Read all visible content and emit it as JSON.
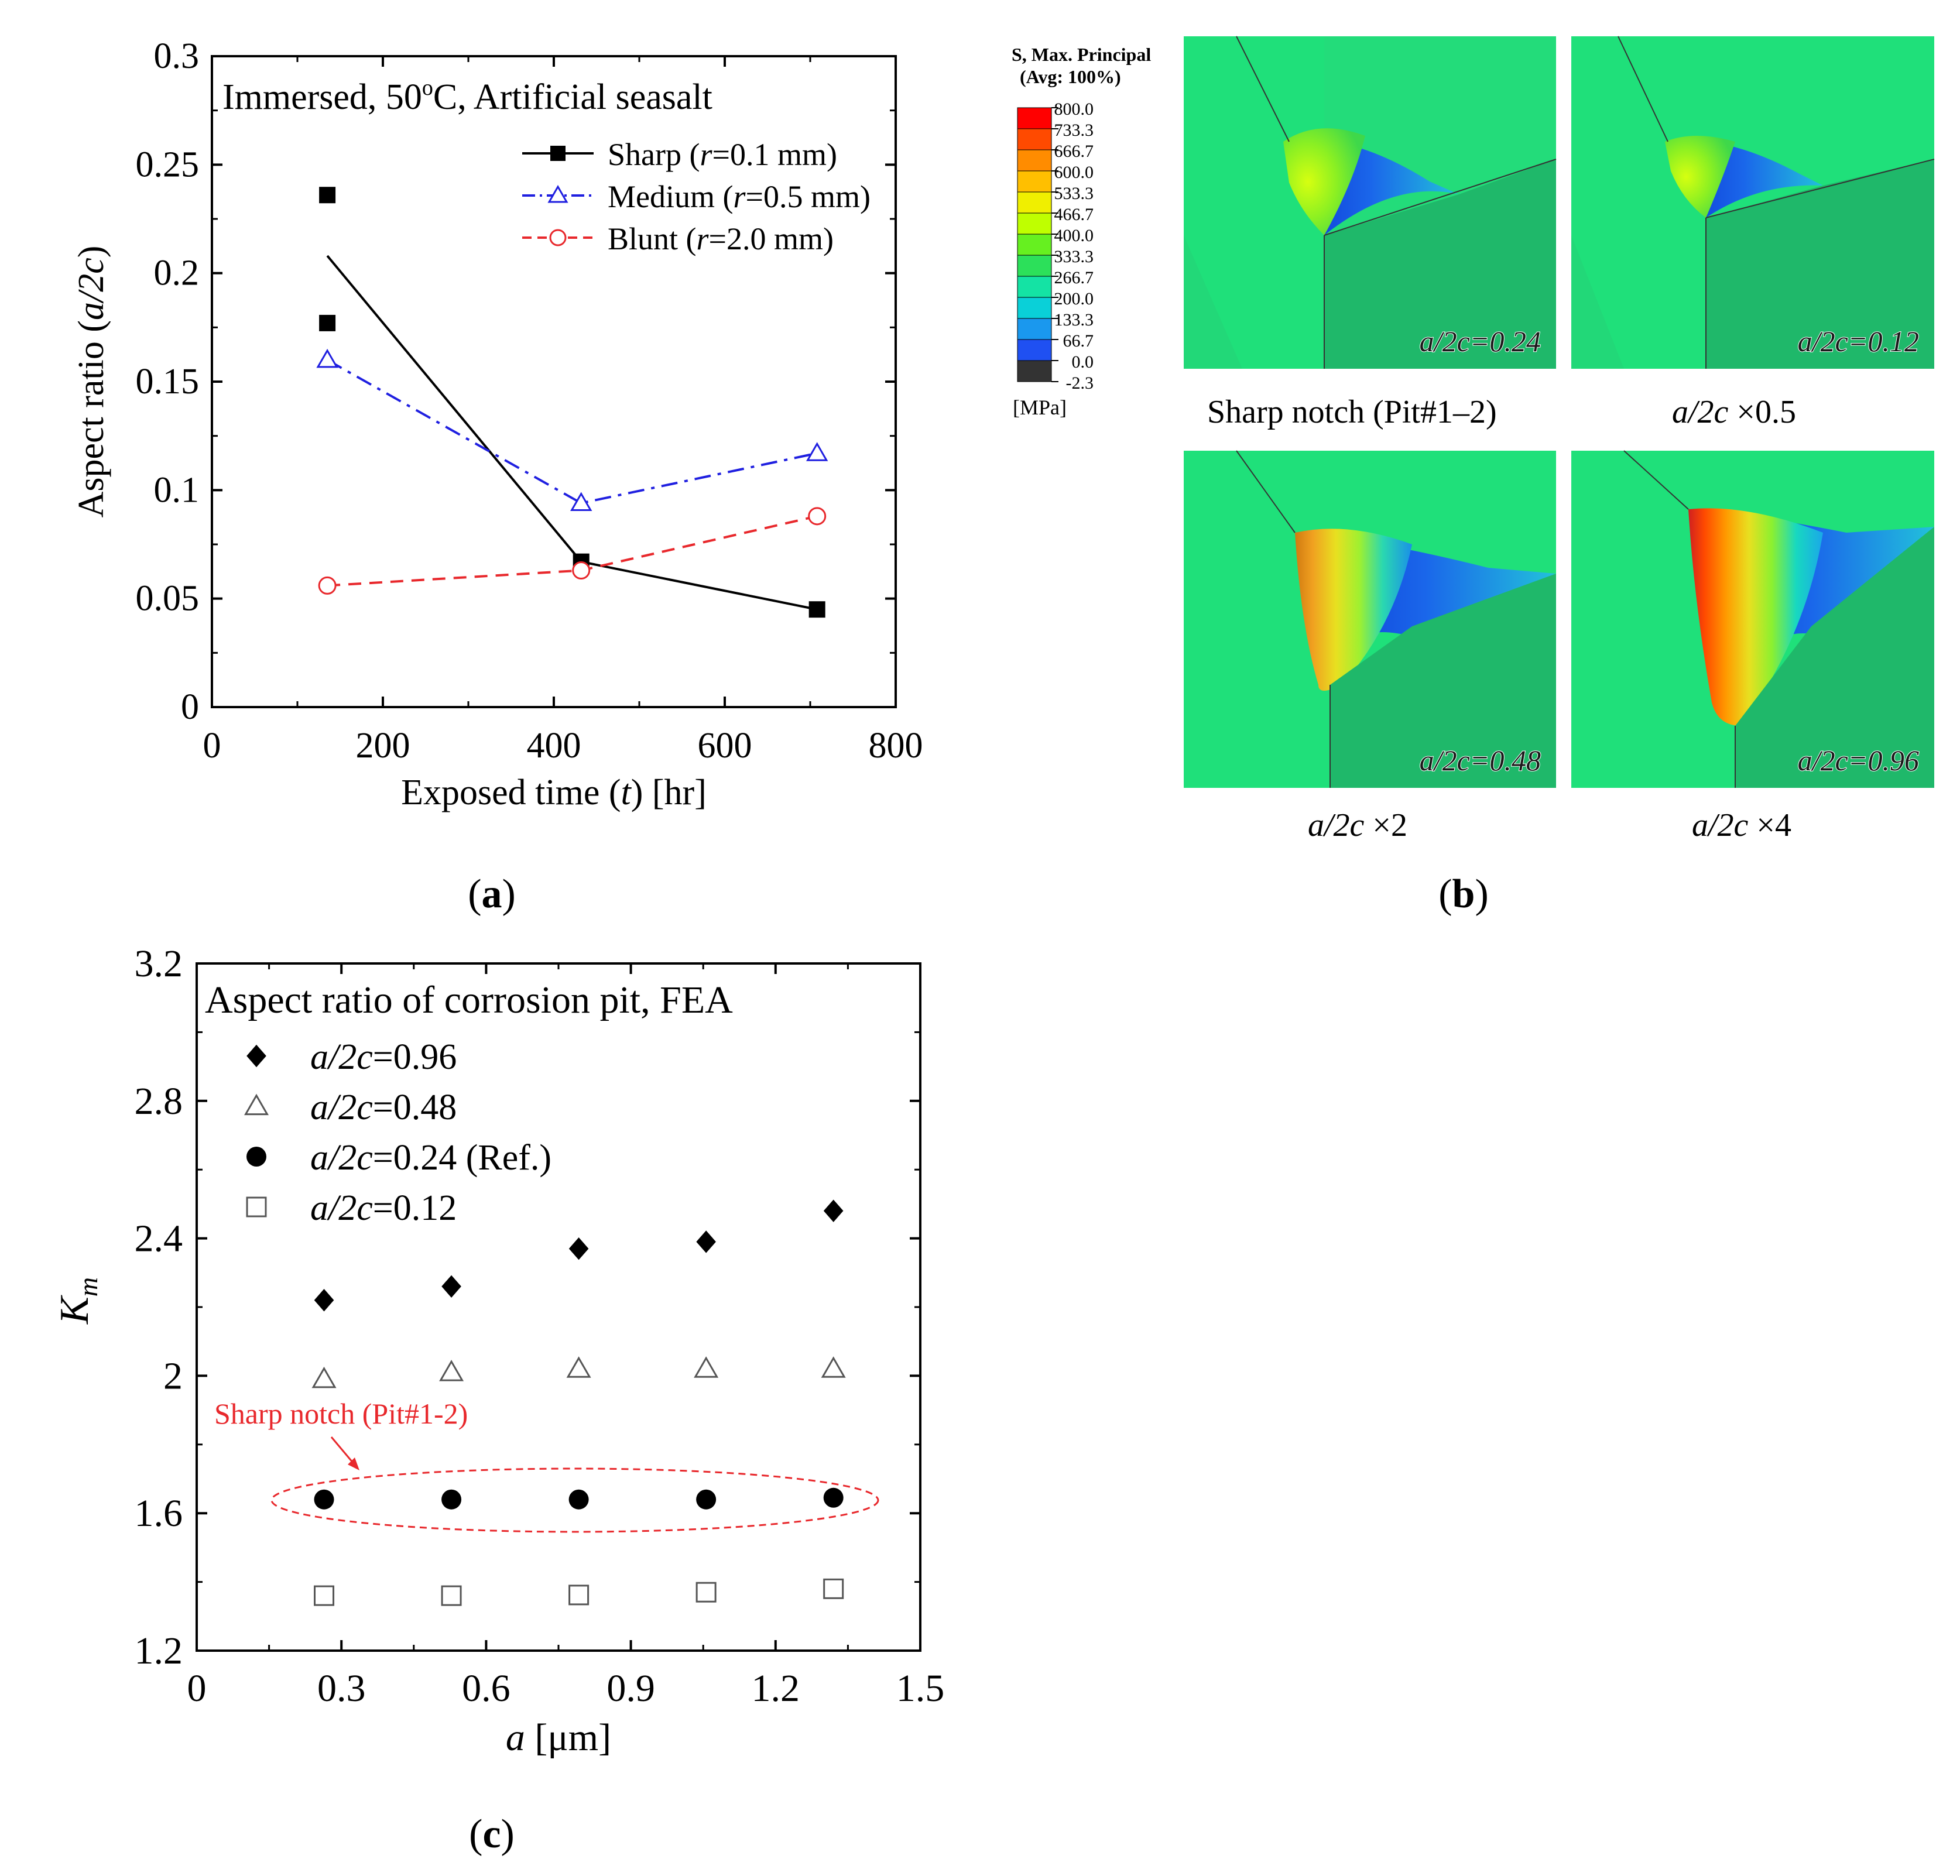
{
  "figure": {
    "panel_labels": [
      "(a)",
      "(b)",
      "(c)"
    ]
  },
  "chart_data": [
    {
      "id": "a",
      "type": "line",
      "title": "Immersed, 50°C, Artificial seasalt",
      "xlabel": "Exposed time (t) [hr]",
      "ylabel": "Aspect ratio (a/2c)",
      "xlim": [
        0,
        800
      ],
      "ylim": [
        0,
        0.3
      ],
      "xticks": [
        0,
        200,
        400,
        600,
        800
      ],
      "yticks": [
        0,
        0.05,
        0.1,
        0.15,
        0.2,
        0.25,
        0.3
      ],
      "xtick_labels": [
        "0",
        "200",
        "400",
        "600",
        "800"
      ],
      "ytick_labels": [
        "0",
        "0.05",
        "0.1",
        "0.15",
        "0.2",
        "0.25",
        "0.3"
      ],
      "grid": false,
      "legend_position": "top-right",
      "series": [
        {
          "name": "Sharp (r=0.1 mm)",
          "legend_prefix": "Sharp (",
          "legend_var": "r",
          "legend_suffix": "=0.1 mm)",
          "color": "#000000",
          "marker": "filled-square",
          "line": "solid",
          "points": [
            [
              135,
              0.236
            ],
            [
              135,
              0.177
            ],
            [
              432,
              0.067
            ],
            [
              708,
              0.045
            ]
          ],
          "fit_line": [
            [
              135,
              0.208
            ],
            [
              432,
              0.067
            ],
            [
              708,
              0.045
            ]
          ]
        },
        {
          "name": "Medium (r=0.5 mm)",
          "legend_prefix": "Medium (",
          "legend_var": "r",
          "legend_suffix": "=0.5 mm)",
          "color": "#1f1fe0",
          "marker": "open-triangle",
          "line": "dash-dot",
          "points": [
            [
              135,
              0.16
            ],
            [
              432,
              0.094
            ],
            [
              708,
              0.117
            ]
          ],
          "fit_line": [
            [
              135,
              0.16
            ],
            [
              432,
              0.094
            ],
            [
              708,
              0.117
            ]
          ]
        },
        {
          "name": "Blunt (r=2.0 mm)",
          "legend_prefix": "Blunt (",
          "legend_var": "r",
          "legend_suffix": "=2.0 mm)",
          "color": "#e8282c",
          "marker": "open-circle",
          "line": "dashed",
          "points": [
            [
              135,
              0.056
            ],
            [
              432,
              0.063
            ],
            [
              708,
              0.088
            ]
          ],
          "fit_line": [
            [
              135,
              0.056
            ],
            [
              432,
              0.063
            ],
            [
              708,
              0.088
            ]
          ]
        }
      ]
    },
    {
      "id": "b",
      "type": "heatmap",
      "legend_title_1": "S, Max. Principal",
      "legend_title_2": "(Avg: 100%)",
      "unit": "[MPa]",
      "levels": [
        "800.0",
        "733.3",
        "666.7",
        "600.0",
        "533.3",
        "466.7",
        "400.0",
        "333.3",
        "266.7",
        "200.0",
        "133.3",
        "66.7",
        "0.0",
        "-2.3"
      ],
      "level_colors": [
        "#ff0000",
        "#ff4a00",
        "#ff8c00",
        "#ffbf00",
        "#f0ef00",
        "#bfff00",
        "#66f020",
        "#2ce05a",
        "#14e3a4",
        "#0ad0d8",
        "#1a98ee",
        "#1f50f2",
        "#0000d8",
        "#333333"
      ],
      "panels": [
        {
          "value_label": "a/2c=0.24",
          "caption": "Sharp notch (Pit#1–2)"
        },
        {
          "value_label": "a/2c=0.12",
          "caption_var": "a/2c",
          "caption_suffix": " ×0.5"
        },
        {
          "value_label": "a/2c=0.48",
          "caption_var": "a/2c",
          "caption_suffix": " ×2"
        },
        {
          "value_label": "a/2c=0.96",
          "caption_var": "a/2c",
          "caption_suffix": " ×4"
        }
      ]
    },
    {
      "id": "c",
      "type": "scatter",
      "title": "Aspect ratio of corrosion pit, FEA",
      "xlabel": "a [μm]",
      "ylabel": "Km",
      "xlim": [
        0,
        1.5
      ],
      "ylim": [
        1.2,
        3.2
      ],
      "xticks": [
        0,
        0.3,
        0.6,
        0.9,
        1.2,
        1.5
      ],
      "yticks": [
        1.2,
        1.6,
        2,
        2.4,
        2.8,
        3.2
      ],
      "xtick_labels": [
        "0",
        "0.3",
        "0.6",
        "0.9",
        "1.2",
        "1.5"
      ],
      "ytick_labels": [
        "1.2",
        "1.6",
        "2",
        "2.4",
        "2.8",
        "3.2"
      ],
      "grid": false,
      "legend_position": "top-left",
      "annotation": "Sharp notch (Pit#1-2)",
      "series": [
        {
          "name": "a/2c=0.96",
          "legend_var": "a/2c",
          "legend_suffix": "=0.96",
          "marker": "filled-diamond",
          "x": [
            0.264,
            0.528,
            0.792,
            1.056,
            1.32
          ],
          "y": [
            2.22,
            2.26,
            2.37,
            2.39,
            2.48
          ]
        },
        {
          "name": "a/2c=0.48",
          "legend_var": "a/2c",
          "legend_suffix": "=0.48",
          "marker": "open-triangle",
          "x": [
            0.264,
            0.528,
            0.792,
            1.056,
            1.32
          ],
          "y": [
            1.99,
            2.01,
            2.02,
            2.02,
            2.02
          ]
        },
        {
          "name": "a/2c=0.24 (Ref.)",
          "legend_var": "a/2c",
          "legend_suffix": "=0.24 (Ref.)",
          "marker": "filled-circle",
          "x": [
            0.264,
            0.528,
            0.792,
            1.056,
            1.32
          ],
          "y": [
            1.64,
            1.64,
            1.64,
            1.64,
            1.645
          ]
        },
        {
          "name": "a/2c=0.12",
          "legend_var": "a/2c",
          "legend_suffix": "=0.12",
          "marker": "open-square",
          "x": [
            0.264,
            0.528,
            0.792,
            1.056,
            1.32
          ],
          "y": [
            1.36,
            1.36,
            1.362,
            1.37,
            1.38
          ]
        }
      ]
    }
  ]
}
